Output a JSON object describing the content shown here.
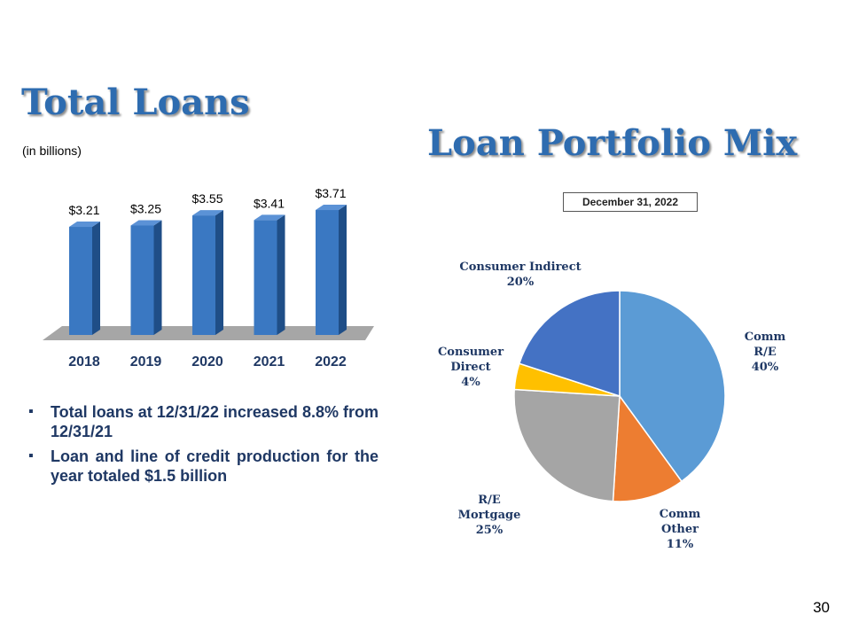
{
  "slide": {
    "title_left": "Total Loans",
    "units": "(in billions)",
    "title_right": "Loan Portfolio Mix",
    "date_box": "December 31, 2022",
    "bullets": [
      "Total loans at 12/31/22 increased 8.8% from 12/31/21",
      "Loan and line of credit production for the year totaled $1.5 billion"
    ],
    "page_number": "30"
  },
  "colors": {
    "title": "#2e6cb0",
    "bar_front": "#3a78c2",
    "bar_side": "#1f4e87",
    "bar_top": "#5b92d6",
    "floor": "#a6a6a6",
    "bullet_text": "#1f3864"
  },
  "chart_data": [
    {
      "type": "bar",
      "categories": [
        "2018",
        "2019",
        "2020",
        "2021",
        "2022"
      ],
      "values": [
        3.21,
        3.25,
        3.55,
        3.41,
        3.71
      ],
      "data_labels": [
        "$3.21",
        "$3.25",
        "$3.55",
        "$3.41",
        "$3.71"
      ],
      "legend": "none",
      "grid": false
    },
    {
      "type": "pie",
      "slices": [
        {
          "label_lines": [
            "Comm",
            "R/E",
            "40%"
          ],
          "value": 40,
          "color": "#5b9bd5"
        },
        {
          "label_lines": [
            "Comm",
            "Other",
            "11%"
          ],
          "value": 11,
          "color": "#ed7d31"
        },
        {
          "label_lines": [
            "R/E",
            "Mortgage",
            "25%"
          ],
          "value": 25,
          "color": "#a5a5a5"
        },
        {
          "label_lines": [
            "Consumer",
            "Direct",
            "4%"
          ],
          "value": 4,
          "color": "#ffc000"
        },
        {
          "label_lines": [
            "Consumer Indirect",
            "20%"
          ],
          "value": 20,
          "color": "#4472c4"
        }
      ],
      "legend": "none"
    }
  ]
}
